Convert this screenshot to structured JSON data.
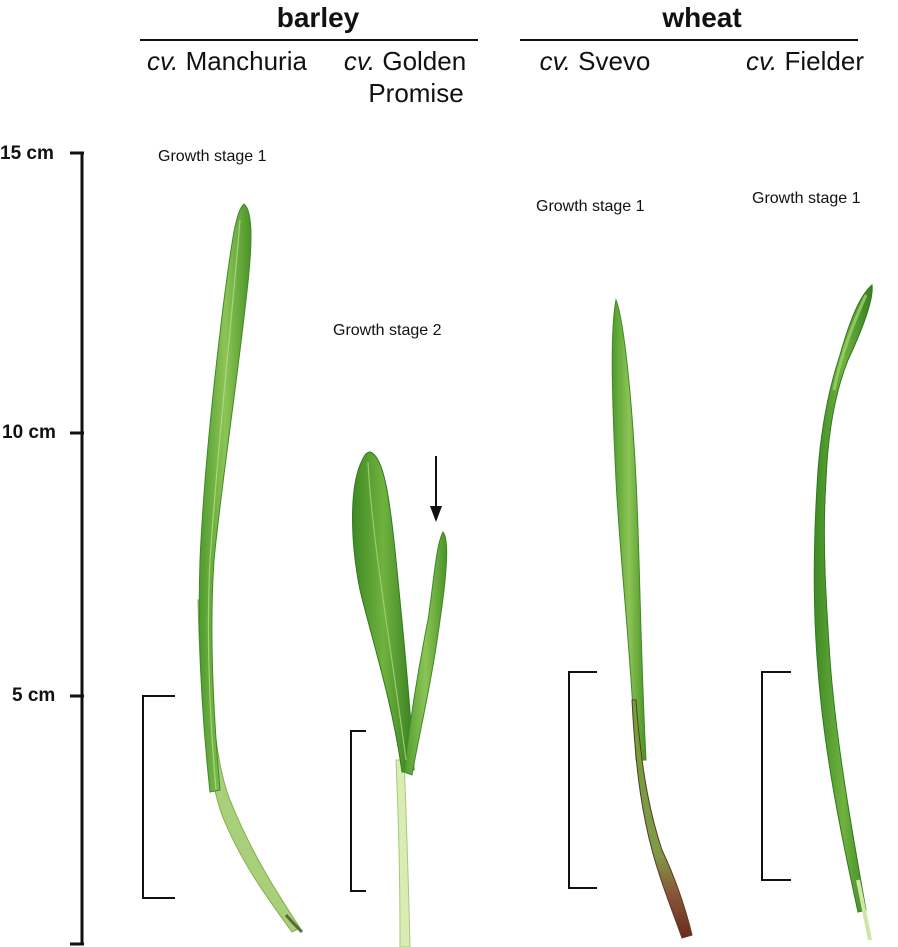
{
  "header": {
    "barley": {
      "species_label": "barley",
      "cultivars": [
        {
          "prefix": "cv.",
          "name": "Manchuria",
          "name_line2": ""
        },
        {
          "prefix": "cv.",
          "name": "Golden",
          "name_line2": "Promise"
        }
      ]
    },
    "wheat": {
      "species_label": "wheat",
      "cultivars": [
        {
          "prefix": "cv.",
          "name": "Svevo",
          "name_line2": ""
        },
        {
          "prefix": "cv.",
          "name": "Fielder",
          "name_line2": ""
        }
      ]
    }
  },
  "growth_stages": {
    "manchuria": "Growth stage 1",
    "golden_promise": "Growth stage 2",
    "svevo": "Growth stage 1",
    "fielder": "Growth stage 1"
  },
  "scale": {
    "ticks": [
      "15 cm",
      "10 cm",
      "5 cm"
    ]
  },
  "colors": {
    "leaf_green": "#5fa83a",
    "leaf_dark": "#3f8a25",
    "leaf_light": "#9ccc65",
    "stem_pale": "#d9e8b8",
    "svevo_base": "#7a3a2a",
    "ink": "#111111"
  },
  "annotation": {
    "arrow_target": "emerging second leaf"
  }
}
